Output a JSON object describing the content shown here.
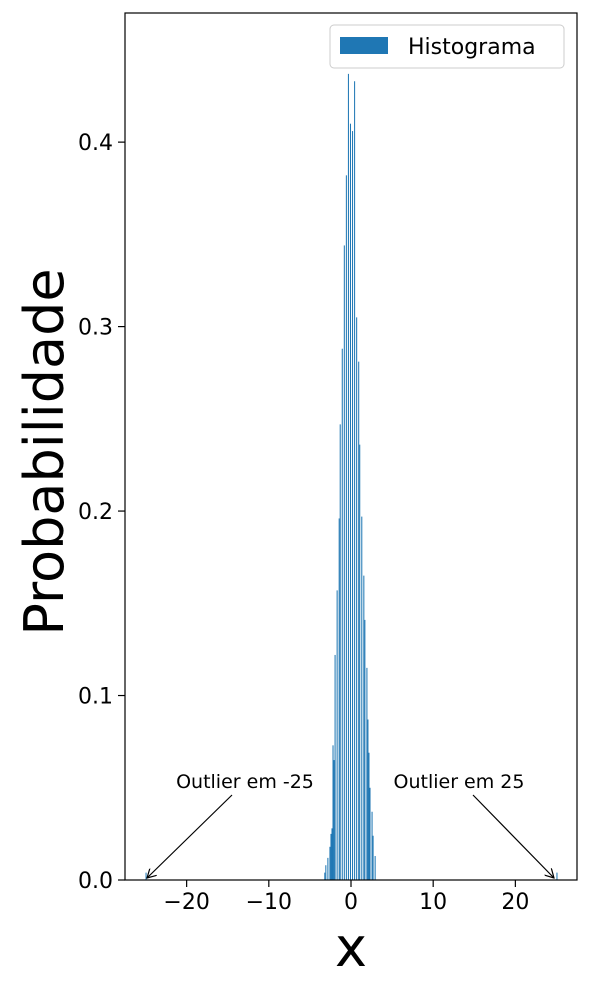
{
  "chart_data": {
    "type": "bar",
    "title": "",
    "xlabel": "x",
    "ylabel": "Probabilidade",
    "xlim": [
      -27.5,
      27.5
    ],
    "ylim": [
      0,
      0.47
    ],
    "grid": false,
    "legend": {
      "placement": "top-right",
      "entries": [
        "Histograma"
      ]
    },
    "xticks": [
      -20,
      -10,
      0,
      10,
      20
    ],
    "xtick_labels": [
      "−20",
      "−10",
      "0",
      "10",
      "20"
    ],
    "yticks": [
      0.0,
      0.1,
      0.2,
      0.3,
      0.4
    ],
    "ytick_labels": [
      "0.0",
      "0.1",
      "0.2",
      "0.3",
      "0.4"
    ],
    "bin_width": 0.125,
    "series": [
      {
        "name": "Histograma",
        "color": "#1f77b4",
        "bins": [
          {
            "x": -25.0,
            "y": 0.004
          },
          {
            "x": -3.25,
            "y": 0.004
          },
          {
            "x": -3.125,
            "y": 0.008
          },
          {
            "x": -2.875,
            "y": 0.012
          },
          {
            "x": -2.625,
            "y": 0.018
          },
          {
            "x": -2.5,
            "y": 0.025
          },
          {
            "x": -2.375,
            "y": 0.028
          },
          {
            "x": -2.25,
            "y": 0.073
          },
          {
            "x": -2.125,
            "y": 0.065
          },
          {
            "x": -2.0,
            "y": 0.122
          },
          {
            "x": -1.75,
            "y": 0.157
          },
          {
            "x": -1.5,
            "y": 0.196
          },
          {
            "x": -1.375,
            "y": 0.247
          },
          {
            "x": -1.125,
            "y": 0.288
          },
          {
            "x": -0.875,
            "y": 0.344
          },
          {
            "x": -0.625,
            "y": 0.382
          },
          {
            "x": -0.375,
            "y": 0.437
          },
          {
            "x": -0.125,
            "y": 0.41
          },
          {
            "x": 0.125,
            "y": 0.406
          },
          {
            "x": 0.375,
            "y": 0.433
          },
          {
            "x": 0.625,
            "y": 0.305
          },
          {
            "x": 0.875,
            "y": 0.281
          },
          {
            "x": 1.0,
            "y": 0.236
          },
          {
            "x": 1.25,
            "y": 0.197
          },
          {
            "x": 1.5,
            "y": 0.165
          },
          {
            "x": 1.625,
            "y": 0.141
          },
          {
            "x": 1.875,
            "y": 0.115
          },
          {
            "x": 2.0,
            "y": 0.087
          },
          {
            "x": 2.125,
            "y": 0.069
          },
          {
            "x": 2.25,
            "y": 0.05
          },
          {
            "x": 2.5,
            "y": 0.037
          },
          {
            "x": 2.625,
            "y": 0.024
          },
          {
            "x": 2.875,
            "y": 0.013
          },
          {
            "x": 25.0,
            "y": 0.004
          }
        ]
      }
    ],
    "annotations": [
      {
        "text": "Outlier em -25",
        "arrow_to": [
          -25,
          0.0
        ]
      },
      {
        "text": "Outlier em 25",
        "arrow_to": [
          25,
          0.0
        ]
      }
    ]
  }
}
